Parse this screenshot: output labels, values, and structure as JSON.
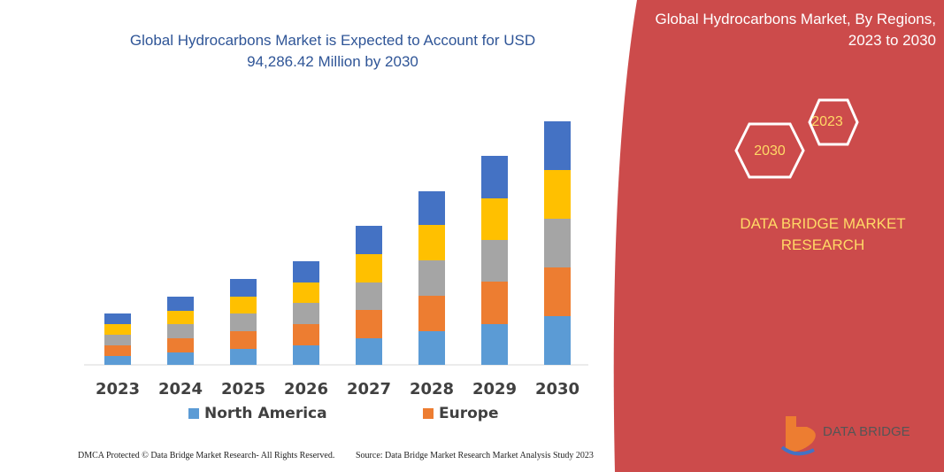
{
  "chart_data": {
    "type": "bar",
    "stacked": true,
    "title": "Global Hydrocarbons Market is Expected to Account for USD 94,286.42 Million by 2030",
    "categories": [
      "2023",
      "2024",
      "2025",
      "2026",
      "2027",
      "2028",
      "2029",
      "2030"
    ],
    "series": [
      {
        "name": "North America",
        "color": "#5b9bd5",
        "values": [
          10,
          14,
          18,
          22,
          30,
          38,
          46,
          55
        ]
      },
      {
        "name": "Europe",
        "color": "#ed7d31",
        "values": [
          12,
          16,
          20,
          24,
          32,
          40,
          48,
          55
        ]
      },
      {
        "color": "#a5a5a5",
        "values": [
          12,
          16,
          20,
          24,
          31,
          40,
          47,
          55
        ]
      },
      {
        "color": "#ffc000",
        "values": [
          12,
          15,
          19,
          23,
          32,
          40,
          47,
          55
        ]
      },
      {
        "color": "#4472c4",
        "values": [
          12,
          16,
          20,
          24,
          32,
          38,
          48,
          55
        ]
      }
    ]
  },
  "panel": {
    "title": "Global Hydrocarbons Market, By Regions, 2023 to 2030",
    "hex_top": "2023",
    "hex_bottom": "2030",
    "brand": "DATA BRIDGE MARKET RESEARCH",
    "logo": "DATA BRIDGE"
  },
  "footer": {
    "left": "DMCA Protected © Data Bridge Market Research- All Rights Reserved.",
    "right": "Source: Data Bridge Market Research Market Analysis Study 2023"
  }
}
